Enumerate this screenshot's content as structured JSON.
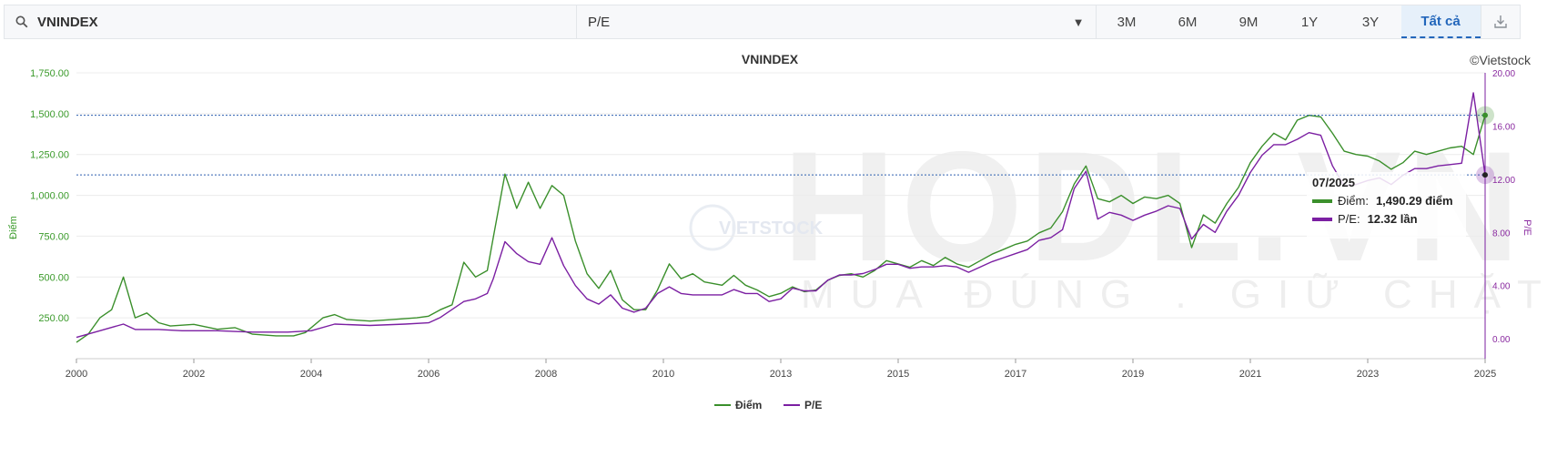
{
  "toolbar": {
    "symbol": "VNINDEX",
    "indicator": "P/E",
    "periods": [
      "3M",
      "6M",
      "9M",
      "1Y",
      "3Y",
      "Tất cả"
    ],
    "active_period": "Tất cả"
  },
  "watermark": {
    "main": "HODL.VN",
    "tagline": "MUA ĐÚNG . GIỮ CHẶT",
    "center_logo": "VIETSTOCK"
  },
  "tooltip": {
    "date": "07/2025",
    "rows": [
      {
        "label": "Điểm:",
        "value": "1,490.29 điểm",
        "color": "#3a8f2b"
      },
      {
        "label": "P/E:",
        "value": "12.32 lần",
        "color": "#7b1fa2"
      }
    ]
  },
  "chart_data": {
    "type": "line",
    "title": "VNINDEX",
    "credit": "©Vietstock",
    "y_left": {
      "label": "Điểm",
      "min": 0,
      "max": 1750,
      "ticks": [
        "250.00",
        "500.00",
        "750.00",
        "1,000.00",
        "1,250.00",
        "1,500.00",
        "1,750.00"
      ],
      "tick_values": [
        250,
        500,
        750,
        1000,
        1250,
        1500,
        1750
      ]
    },
    "y_right": {
      "label": "P/E",
      "min": -1.5,
      "max": 20,
      "ticks": [
        "0.00",
        "4.00",
        "8.00",
        "12.00",
        "16.00",
        "20.00"
      ],
      "tick_values": [
        0,
        4,
        8,
        12,
        16,
        20
      ]
    },
    "x_labels": [
      "2000",
      "2002",
      "2004",
      "2006",
      "2008",
      "2010",
      "2013",
      "2015",
      "2017",
      "2019",
      "2021",
      "2023",
      "2025"
    ],
    "crosshair": {
      "diem": 1490.29,
      "pe": 12.32
    },
    "legend": [
      "Điểm",
      "P/E"
    ],
    "series": [
      {
        "name": "Điểm",
        "color": "#3a8f2b",
        "axis": "left",
        "points": [
          [
            0,
            100
          ],
          [
            2,
            150
          ],
          [
            4,
            250
          ],
          [
            6,
            300
          ],
          [
            8,
            500
          ],
          [
            10,
            250
          ],
          [
            12,
            280
          ],
          [
            14,
            220
          ],
          [
            16,
            200
          ],
          [
            20,
            210
          ],
          [
            24,
            180
          ],
          [
            27,
            190
          ],
          [
            30,
            150
          ],
          [
            34,
            140
          ],
          [
            37,
            140
          ],
          [
            39,
            160
          ],
          [
            42,
            250
          ],
          [
            44,
            270
          ],
          [
            46,
            240
          ],
          [
            50,
            230
          ],
          [
            54,
            240
          ],
          [
            58,
            250
          ],
          [
            60,
            260
          ],
          [
            62,
            300
          ],
          [
            64,
            330
          ],
          [
            66,
            590
          ],
          [
            68,
            500
          ],
          [
            70,
            540
          ],
          [
            71,
            740
          ],
          [
            73,
            1130
          ],
          [
            75,
            920
          ],
          [
            77,
            1080
          ],
          [
            79,
            920
          ],
          [
            81,
            1060
          ],
          [
            83,
            1000
          ],
          [
            85,
            720
          ],
          [
            87,
            520
          ],
          [
            89,
            430
          ],
          [
            91,
            540
          ],
          [
            93,
            360
          ],
          [
            95,
            300
          ],
          [
            97,
            300
          ],
          [
            99,
            420
          ],
          [
            101,
            580
          ],
          [
            103,
            490
          ],
          [
            105,
            520
          ],
          [
            107,
            470
          ],
          [
            110,
            450
          ],
          [
            112,
            510
          ],
          [
            114,
            450
          ],
          [
            116,
            420
          ],
          [
            118,
            380
          ],
          [
            120,
            400
          ],
          [
            122,
            440
          ],
          [
            124,
            410
          ],
          [
            126,
            420
          ],
          [
            128,
            480
          ],
          [
            130,
            510
          ],
          [
            132,
            520
          ],
          [
            134,
            500
          ],
          [
            136,
            540
          ],
          [
            138,
            600
          ],
          [
            140,
            580
          ],
          [
            142,
            560
          ],
          [
            144,
            600
          ],
          [
            146,
            570
          ],
          [
            148,
            620
          ],
          [
            150,
            580
          ],
          [
            152,
            560
          ],
          [
            154,
            600
          ],
          [
            156,
            640
          ],
          [
            158,
            670
          ],
          [
            160,
            700
          ],
          [
            162,
            720
          ],
          [
            164,
            770
          ],
          [
            166,
            800
          ],
          [
            168,
            900
          ],
          [
            170,
            1070
          ],
          [
            172,
            1180
          ],
          [
            174,
            980
          ],
          [
            176,
            960
          ],
          [
            178,
            1000
          ],
          [
            180,
            950
          ],
          [
            182,
            990
          ],
          [
            184,
            980
          ],
          [
            186,
            1000
          ],
          [
            188,
            950
          ],
          [
            190,
            680
          ],
          [
            192,
            880
          ],
          [
            194,
            830
          ],
          [
            196,
            950
          ],
          [
            198,
            1050
          ],
          [
            200,
            1200
          ],
          [
            202,
            1300
          ],
          [
            204,
            1380
          ],
          [
            206,
            1340
          ],
          [
            208,
            1460
          ],
          [
            210,
            1490
          ],
          [
            212,
            1480
          ],
          [
            214,
            1380
          ],
          [
            216,
            1270
          ],
          [
            218,
            1250
          ],
          [
            220,
            1240
          ],
          [
            222,
            1210
          ],
          [
            224,
            1160
          ],
          [
            226,
            1200
          ],
          [
            228,
            1270
          ],
          [
            230,
            1250
          ],
          [
            232,
            1270
          ],
          [
            234,
            1290
          ],
          [
            236,
            1300
          ],
          [
            238,
            1250
          ],
          [
            240,
            1490.29
          ]
        ]
      },
      {
        "name": "P/E",
        "color": "#7b1fa2",
        "axis": "right",
        "points": [
          [
            0,
            0.1
          ],
          [
            4,
            0.6
          ],
          [
            8,
            1.1
          ],
          [
            10,
            0.7
          ],
          [
            14,
            0.7
          ],
          [
            18,
            0.6
          ],
          [
            24,
            0.6
          ],
          [
            30,
            0.5
          ],
          [
            36,
            0.5
          ],
          [
            40,
            0.6
          ],
          [
            44,
            1.1
          ],
          [
            50,
            1.0
          ],
          [
            56,
            1.1
          ],
          [
            60,
            1.2
          ],
          [
            62,
            1.6
          ],
          [
            66,
            2.8
          ],
          [
            68,
            3.0
          ],
          [
            70,
            3.4
          ],
          [
            71,
            4.5
          ],
          [
            73,
            7.3
          ],
          [
            75,
            6.4
          ],
          [
            77,
            5.8
          ],
          [
            79,
            5.6
          ],
          [
            81,
            7.6
          ],
          [
            83,
            5.5
          ],
          [
            85,
            4.0
          ],
          [
            87,
            3.0
          ],
          [
            89,
            2.6
          ],
          [
            91,
            3.3
          ],
          [
            93,
            2.3
          ],
          [
            95,
            2.0
          ],
          [
            97,
            2.3
          ],
          [
            99,
            3.4
          ],
          [
            101,
            3.9
          ],
          [
            103,
            3.4
          ],
          [
            105,
            3.3
          ],
          [
            107,
            3.3
          ],
          [
            110,
            3.3
          ],
          [
            112,
            3.7
          ],
          [
            114,
            3.4
          ],
          [
            116,
            3.4
          ],
          [
            118,
            2.8
          ],
          [
            120,
            3.0
          ],
          [
            122,
            3.8
          ],
          [
            124,
            3.6
          ],
          [
            126,
            3.6
          ],
          [
            128,
            4.4
          ],
          [
            130,
            4.8
          ],
          [
            132,
            4.8
          ],
          [
            134,
            4.9
          ],
          [
            136,
            5.2
          ],
          [
            138,
            5.6
          ],
          [
            140,
            5.6
          ],
          [
            142,
            5.3
          ],
          [
            144,
            5.4
          ],
          [
            146,
            5.4
          ],
          [
            148,
            5.5
          ],
          [
            150,
            5.4
          ],
          [
            152,
            5.0
          ],
          [
            154,
            5.4
          ],
          [
            156,
            5.8
          ],
          [
            158,
            6.1
          ],
          [
            160,
            6.4
          ],
          [
            162,
            6.7
          ],
          [
            164,
            7.4
          ],
          [
            166,
            7.6
          ],
          [
            168,
            8.2
          ],
          [
            170,
            11.3
          ],
          [
            172,
            12.6
          ],
          [
            174,
            9.0
          ],
          [
            176,
            9.5
          ],
          [
            178,
            9.3
          ],
          [
            180,
            8.9
          ],
          [
            182,
            9.3
          ],
          [
            184,
            9.6
          ],
          [
            186,
            10.0
          ],
          [
            188,
            9.8
          ],
          [
            190,
            7.5
          ],
          [
            192,
            8.6
          ],
          [
            194,
            8.0
          ],
          [
            196,
            9.6
          ],
          [
            198,
            10.8
          ],
          [
            200,
            12.5
          ],
          [
            202,
            13.8
          ],
          [
            204,
            14.6
          ],
          [
            206,
            14.6
          ],
          [
            208,
            15.0
          ],
          [
            210,
            15.5
          ],
          [
            212,
            15.3
          ],
          [
            214,
            13.0
          ],
          [
            216,
            11.5
          ],
          [
            218,
            11.6
          ],
          [
            220,
            11.9
          ],
          [
            222,
            12.1
          ],
          [
            224,
            11.6
          ],
          [
            226,
            12.3
          ],
          [
            228,
            12.8
          ],
          [
            230,
            12.8
          ],
          [
            232,
            13.0
          ],
          [
            234,
            13.1
          ],
          [
            236,
            13.2
          ],
          [
            238,
            18.5
          ],
          [
            240,
            12.32
          ]
        ]
      }
    ]
  }
}
